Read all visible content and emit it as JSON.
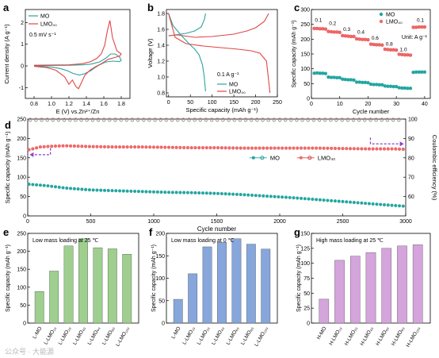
{
  "colors": {
    "mo": "#2aa39f",
    "lmo": "#e04545",
    "mo_marker": "#23a6a1",
    "lmo_marker": "#f06a6a",
    "arrow": "#8a44c8",
    "green_bar": "#9ecf8e",
    "blue_bar": "#86a6dc",
    "purple_bar": "#d5a4dc"
  },
  "watermark": "公众号 · 大能源",
  "chart_data": [
    {
      "panel": "a",
      "type": "line",
      "xlabel": "E (V) vs.Zn²⁺/Zn",
      "ylabel": "Current density (A g⁻¹)",
      "annotation": "0.5 mV s⁻¹",
      "xlim": [
        0.7,
        1.9
      ],
      "ylim": [
        -1.5,
        2.6
      ],
      "xticks": [
        "0.8",
        "1.0",
        "1.2",
        "1.4",
        "1.6",
        "1.8"
      ],
      "yticks": [
        "-1",
        "0",
        "1",
        "2"
      ],
      "legend": [
        "MO",
        "LMO₄₀"
      ],
      "legend_position": "top-left",
      "series": [
        {
          "name": "MO",
          "x": [
            0.8,
            1.0,
            1.2,
            1.35,
            1.45,
            1.55,
            1.62,
            1.68,
            1.73,
            1.78,
            1.8,
            1.78,
            1.7,
            1.62,
            1.55,
            1.5,
            1.45,
            1.38,
            1.32,
            1.25,
            1.18,
            1.1,
            1.0,
            0.9,
            0.8
          ],
          "y": [
            0.02,
            0.02,
            0.03,
            0.05,
            0.08,
            0.18,
            0.35,
            0.55,
            0.55,
            0.42,
            0.25,
            0.2,
            0.22,
            0.18,
            0.05,
            -0.08,
            -0.22,
            -0.36,
            -0.42,
            -0.35,
            -0.22,
            -0.12,
            -0.05,
            -0.02,
            0.0
          ]
        },
        {
          "name": "LMO₄₀",
          "x": [
            0.8,
            1.0,
            1.2,
            1.35,
            1.45,
            1.52,
            1.57,
            1.61,
            1.64,
            1.67,
            1.7,
            1.75,
            1.8,
            1.78,
            1.72,
            1.65,
            1.58,
            1.5,
            1.44,
            1.38,
            1.34,
            1.31,
            1.28,
            1.24,
            1.2,
            1.15,
            1.05,
            0.95,
            0.8
          ],
          "y": [
            0.03,
            0.04,
            0.05,
            0.1,
            0.2,
            0.35,
            0.55,
            0.95,
            1.6,
            2.1,
            1.3,
            0.7,
            0.55,
            0.45,
            0.38,
            0.3,
            0.12,
            -0.05,
            -0.2,
            -0.45,
            -0.8,
            -1.05,
            -0.95,
            -0.65,
            -0.85,
            -0.5,
            -0.2,
            -0.08,
            -0.02
          ]
        }
      ]
    },
    {
      "panel": "b",
      "type": "line",
      "xlabel": "Specific capacity (mAh g⁻¹)",
      "ylabel": "Voltage (V)",
      "annotation": "0.1 A g⁻¹",
      "xlim": [
        -5,
        250
      ],
      "ylim": [
        0.75,
        1.85
      ],
      "xticks": [
        "0",
        "50",
        "100",
        "150",
        "200",
        "250"
      ],
      "yticks": [
        "0.8",
        "1.0",
        "1.2",
        "1.4",
        "1.6",
        "1.8"
      ],
      "legend": [
        "MO",
        "LMO₄₀"
      ],
      "legend_position": "bottom-right",
      "series": [
        {
          "name": "MO charge",
          "x": [
            0,
            15,
            40,
            60,
            75,
            82,
            85
          ],
          "y": [
            1.52,
            1.53,
            1.55,
            1.58,
            1.63,
            1.72,
            1.8
          ]
        },
        {
          "name": "MO discharge",
          "x": [
            0,
            10,
            25,
            45,
            60,
            70,
            78,
            82,
            85
          ],
          "y": [
            1.8,
            1.65,
            1.55,
            1.43,
            1.35,
            1.28,
            1.15,
            1.0,
            0.82
          ]
        },
        {
          "name": "LMO₄₀ charge",
          "x": [
            0,
            20,
            60,
            100,
            150,
            180,
            200,
            220,
            230
          ],
          "y": [
            1.52,
            1.53,
            1.5,
            1.51,
            1.54,
            1.58,
            1.62,
            1.7,
            1.8
          ]
        },
        {
          "name": "LMO₄₀ discharge",
          "x": [
            0,
            15,
            40,
            80,
            120,
            160,
            190,
            210,
            225,
            233
          ],
          "y": [
            1.8,
            1.5,
            1.42,
            1.39,
            1.37,
            1.35,
            1.33,
            1.3,
            1.2,
            0.8
          ]
        }
      ]
    },
    {
      "panel": "c",
      "type": "scatter",
      "xlabel": "Cycle number",
      "ylabel": "Specific capacity (mAh g⁻¹)",
      "unit_note": "Unit: A g⁻¹",
      "xlim": [
        0,
        42
      ],
      "ylim": [
        0,
        300
      ],
      "xticks": [
        "0",
        "10",
        "20",
        "30",
        "40"
      ],
      "yticks": [
        "0",
        "50",
        "100",
        "150",
        "200",
        "250",
        "300"
      ],
      "rate_labels": [
        {
          "text": "0.1",
          "x": 2.5,
          "y": 258
        },
        {
          "text": "0.2",
          "x": 7.5,
          "y": 248
        },
        {
          "text": "0.3",
          "x": 12.5,
          "y": 228
        },
        {
          "text": "0.4",
          "x": 17.5,
          "y": 218
        },
        {
          "text": "0.6",
          "x": 22.5,
          "y": 198
        },
        {
          "text": "0.8",
          "x": 27.5,
          "y": 178
        },
        {
          "text": "1.0",
          "x": 32.5,
          "y": 160
        },
        {
          "text": "0.1",
          "x": 38.5,
          "y": 258
        }
      ],
      "legend": [
        "MO",
        "LMO₄₀"
      ],
      "legend_position": "top-right",
      "series": [
        {
          "name": "MO",
          "values": [
            [
              1,
              85
            ],
            [
              2,
              86
            ],
            [
              3,
              85
            ],
            [
              4,
              85
            ],
            [
              5,
              84
            ],
            [
              6,
              72
            ],
            [
              7,
              71
            ],
            [
              8,
              71
            ],
            [
              9,
              70
            ],
            [
              10,
              70
            ],
            [
              11,
              65
            ],
            [
              12,
              64
            ],
            [
              13,
              63
            ],
            [
              14,
              63
            ],
            [
              15,
              62
            ],
            [
              16,
              55
            ],
            [
              17,
              55
            ],
            [
              18,
              54
            ],
            [
              19,
              54
            ],
            [
              20,
              53
            ],
            [
              21,
              48
            ],
            [
              22,
              47
            ],
            [
              23,
              47
            ],
            [
              24,
              46
            ],
            [
              25,
              46
            ],
            [
              26,
              42
            ],
            [
              27,
              41
            ],
            [
              28,
              41
            ],
            [
              29,
              40
            ],
            [
              30,
              40
            ],
            [
              31,
              36
            ],
            [
              32,
              35
            ],
            [
              33,
              35
            ],
            [
              34,
              34
            ],
            [
              35,
              34
            ],
            [
              36,
              88
            ],
            [
              37,
              89
            ],
            [
              38,
              89
            ],
            [
              39,
              89
            ],
            [
              40,
              89
            ]
          ]
        },
        {
          "name": "LMO₄₀",
          "values": [
            [
              1,
              236
            ],
            [
              2,
              236
            ],
            [
              3,
              235
            ],
            [
              4,
              235
            ],
            [
              5,
              234
            ],
            [
              6,
              226
            ],
            [
              7,
              225
            ],
            [
              8,
              224
            ],
            [
              9,
              224
            ],
            [
              10,
              223
            ],
            [
              11,
              212
            ],
            [
              12,
              211
            ],
            [
              13,
              210
            ],
            [
              14,
              209
            ],
            [
              15,
              209
            ],
            [
              16,
              201
            ],
            [
              17,
              200
            ],
            [
              18,
              199
            ],
            [
              19,
              199
            ],
            [
              20,
              198
            ],
            [
              21,
              183
            ],
            [
              22,
              182
            ],
            [
              23,
              181
            ],
            [
              24,
              181
            ],
            [
              25,
              180
            ],
            [
              26,
              166
            ],
            [
              27,
              165
            ],
            [
              28,
              164
            ],
            [
              29,
              164
            ],
            [
              30,
              163
            ],
            [
              31,
              149
            ],
            [
              32,
              148
            ],
            [
              33,
              147
            ],
            [
              34,
              147
            ],
            [
              35,
              146
            ],
            [
              36,
              240
            ],
            [
              37,
              240
            ],
            [
              38,
              241
            ],
            [
              39,
              241
            ],
            [
              40,
              241
            ]
          ]
        }
      ]
    },
    {
      "panel": "d",
      "type": "scatter",
      "xlabel": "Cycle number",
      "ylabel": "Specific capacity (mAh g⁻¹)",
      "ylabel_right": "Coulombic efficiency (%)",
      "xlim": [
        0,
        3000
      ],
      "ylim": [
        0,
        250
      ],
      "ylim_right": [
        50,
        100
      ],
      "xticks": [
        "0",
        "500",
        "1000",
        "1500",
        "2000",
        "2500",
        "3000"
      ],
      "yticks": [
        "0",
        "50",
        "100",
        "150",
        "200",
        "250"
      ],
      "yticks_right": [
        "60",
        "70",
        "80",
        "90",
        "100"
      ],
      "legend": [
        "MO",
        "LMO₄₀"
      ],
      "legend_position": "center",
      "series": [
        {
          "name": "MO capacity",
          "x": [
            0,
            150,
            300,
            500,
            700,
            900,
            1100,
            1300,
            1500,
            1700,
            1900,
            2100,
            2300,
            2500,
            2700,
            2900,
            3000
          ],
          "y": [
            82,
            78,
            72,
            67,
            65,
            63,
            61,
            60,
            58,
            55,
            51,
            47,
            42,
            37,
            32,
            27,
            25
          ]
        },
        {
          "name": "LMO₄₀ capacity",
          "x": [
            0,
            100,
            200,
            300,
            400,
            500,
            700,
            900,
            1100,
            1300,
            1500,
            1700,
            1900,
            2100,
            2300,
            2500,
            2700,
            2900,
            3000
          ],
          "y": [
            170,
            178,
            180,
            181,
            180,
            179,
            178,
            178,
            177,
            176,
            176,
            175,
            175,
            175,
            175,
            174,
            173,
            173,
            172
          ]
        },
        {
          "name": "MO efficiency",
          "x": [
            0,
            3000
          ],
          "y": [
            99.5,
            99.5
          ]
        },
        {
          "name": "LMO₄₀ efficiency",
          "x": [
            0,
            3000
          ],
          "y": [
            99.8,
            99.8
          ]
        }
      ]
    },
    {
      "panel": "e",
      "type": "bar",
      "title": "Low mass loading at 25 ℃",
      "ylabel": "Specific capacity (mAh g⁻¹)",
      "ylim": [
        0,
        250
      ],
      "yticks": [
        "0",
        "50",
        "100",
        "150",
        "200",
        "250"
      ],
      "categories": [
        "L-MO",
        "L-LMO₁₀",
        "L-LMO₂₀",
        "L-LMO₄₀",
        "L-LMO₆₀",
        "L-LMO₈₀",
        "L-LMO₁₀₀"
      ],
      "values": [
        88,
        145,
        215,
        235,
        210,
        207,
        192
      ]
    },
    {
      "panel": "f",
      "type": "bar",
      "title": "Low mass loading at 0 ℃",
      "ylabel": "Specific capacity (mAh g⁻¹)",
      "ylim": [
        0,
        200
      ],
      "yticks": [
        "0",
        "50",
        "100",
        "150",
        "200"
      ],
      "categories": [
        "L-MO",
        "L-LMO₁₀",
        "L-LMO₂₀",
        "L-LMO₄₀",
        "L-LMO₆₀",
        "L-LMO₈₀",
        "L-LMO₁₀₀"
      ],
      "values": [
        53,
        110,
        170,
        180,
        188,
        176,
        165
      ]
    },
    {
      "panel": "g",
      "type": "bar",
      "title": "High mass loading at 25 ℃",
      "ylabel": "Specific capacity (mAh g⁻¹)",
      "ylim": [
        0,
        150
      ],
      "yticks": [
        "0",
        "25",
        "50",
        "75",
        "100",
        "125",
        "150"
      ],
      "categories": [
        "H-MO",
        "H-LMO₁₀",
        "H-LMO₂₀",
        "H-LMO₄₀",
        "H-LMO₆₀",
        "H-LMO₈₀",
        "H-LMO₁₀₀"
      ],
      "values": [
        40,
        105,
        112,
        118,
        125,
        129,
        131
      ]
    }
  ]
}
